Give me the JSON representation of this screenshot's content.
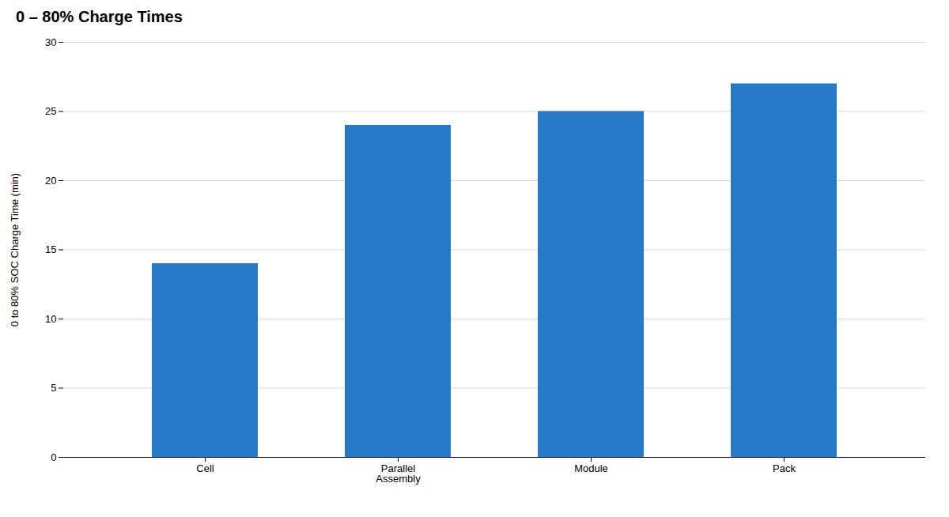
{
  "chart_data": {
    "type": "bar",
    "title": "0 – 80% Charge Times",
    "categories": [
      "Cell",
      "Parallel\nAssembly",
      "Module",
      "Pack"
    ],
    "values": [
      14,
      24,
      25,
      27
    ],
    "color": "#2878c8",
    "ylabel": "0 to 80% SOC Charge Time (min)",
    "ylim": [
      0,
      30
    ],
    "yticks": [
      0,
      5,
      10,
      15,
      20,
      25,
      30
    ],
    "grid": true
  }
}
